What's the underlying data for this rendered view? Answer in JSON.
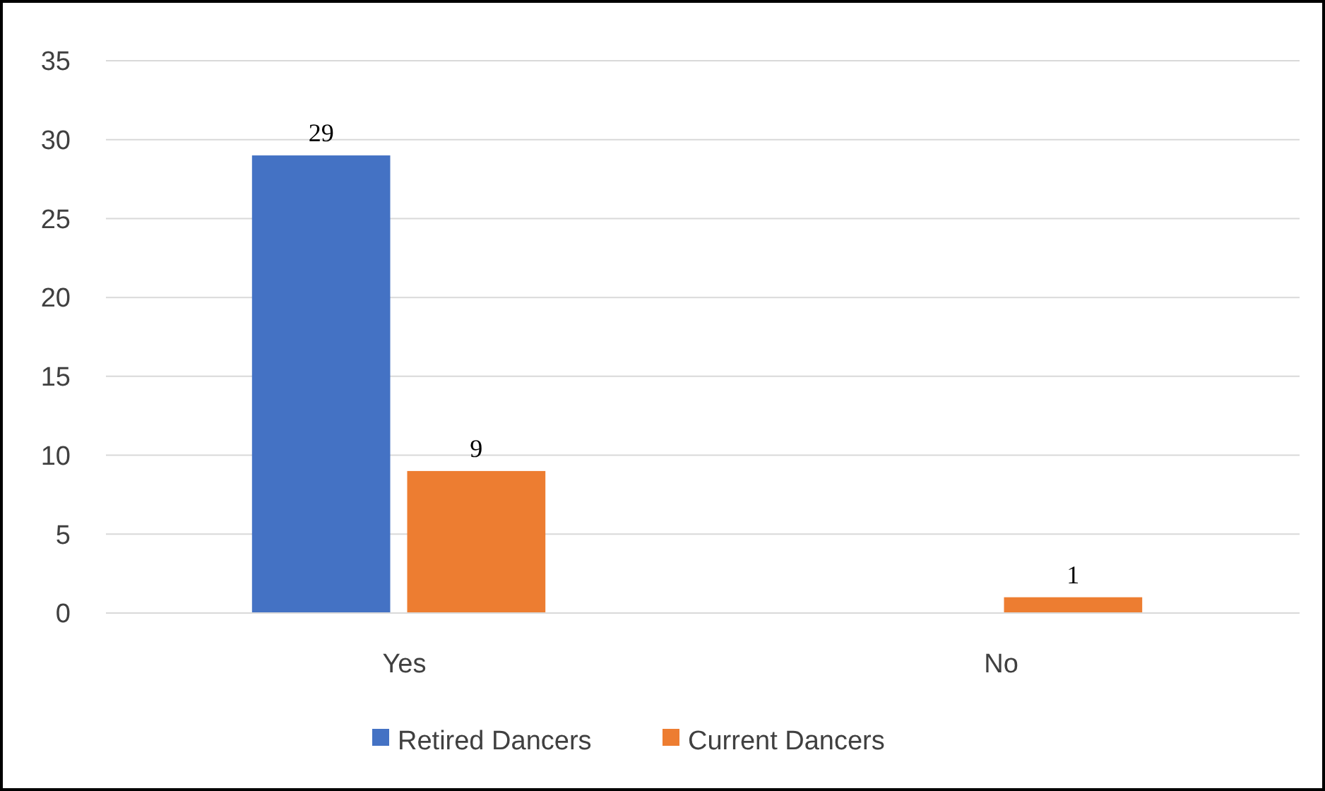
{
  "chart_data": {
    "type": "bar",
    "categories": [
      "Yes",
      "No"
    ],
    "series": [
      {
        "name": "Retired Dancers",
        "color": "#4472c4",
        "values": [
          29,
          null
        ],
        "value_labels": [
          "29",
          null
        ]
      },
      {
        "name": "Current Dancers",
        "color": "#ed7d31",
        "values": [
          9,
          1
        ],
        "value_labels": [
          "9",
          "1"
        ]
      }
    ],
    "ylim": [
      0,
      35
    ],
    "yticks": [
      0,
      5,
      10,
      15,
      20,
      25,
      30,
      35
    ],
    "grid": "y",
    "legend": "bottom"
  }
}
